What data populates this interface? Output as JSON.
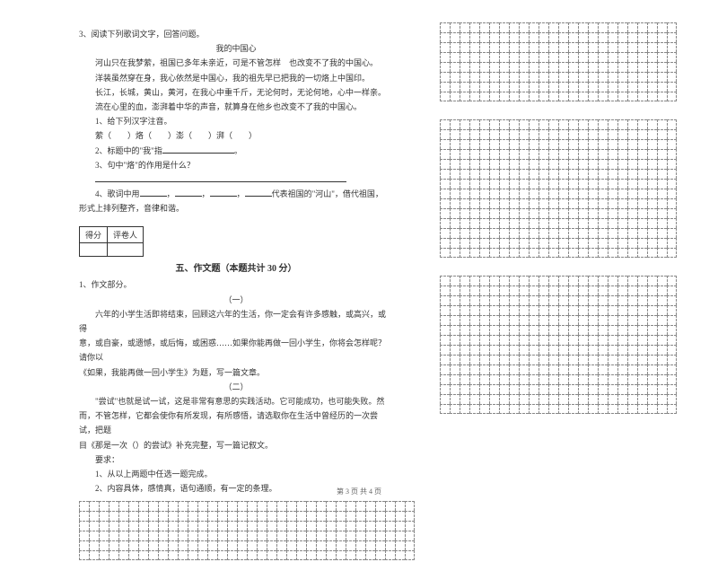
{
  "q3": {
    "prompt": "3、阅读下列歌词文字，回答问题。",
    "title": "我的中国心",
    "l1": "河山只在我梦萦，祖国已多年未亲近，可是不管怎样　也改变不了我的中国心。",
    "l2": "洋装虽然穿在身，我心依然是中国心，我的祖先早已把我的一切烙上中国印。",
    "l3": "长江，长城，黄山，黄河，在我心中重千斤，无论何时，无论何地，心中一样亲。",
    "l4": "流在心里的血，澎湃着中华的声音，就算身在他乡也改变不了我的中国心。",
    "s1_label": "1、给下列汉字注音。",
    "s1_text": "萦（　　）烙（　　）澎（　　）湃（　　）",
    "s2": "2、标题中的\"我\"指",
    "s3": "3、句中\"烙\"的作用是什么？",
    "s4a": "4、歌词中用",
    "s4b": "代表祖国的\"河山\"，借代祖国，",
    "s4c": "形式上排列整齐，音律和谐。"
  },
  "score": {
    "a": "得分",
    "b": "评卷人"
  },
  "section5": "五、作文题（本题共计 30 分）",
  "essay": {
    "label": "1、作文部分。",
    "t1": "（一）",
    "p1": "六年的小学生活即将结束，回顾这六年的生活，你一定会有许多感触，或高兴，或得",
    "p2": "意，或自豪，或遗憾，或后悔，或困惑……如果你能再做一回小学生，你将会怎样呢？请你以",
    "p3": "《如果，我能再做一回小学生》为题，写一篇文章。",
    "t2": "（二）",
    "p4": "\"尝试\"也就是试一试，这是非常有意思的实践活动。它可能成功，也可能失败。然",
    "p5": "而，不管怎样，它都会使你有所发现，有所感悟，请选取你在生活中曾经历的一次尝试，把题",
    "p6": "目《那是一次（）的尝试》补充完整，写一篇记叙文。",
    "req": "要求：",
    "r1": "1、从以上两题中任选一题完成。",
    "r2": "2、内容具体，感情真，语句通顺，有一定的条理。"
  },
  "footer": "第 3 页 共 4 页",
  "grid": {
    "cols": 24,
    "rows": 8,
    "bottom_cols": 34,
    "bottom_rows": 6,
    "right_sections": 3
  }
}
